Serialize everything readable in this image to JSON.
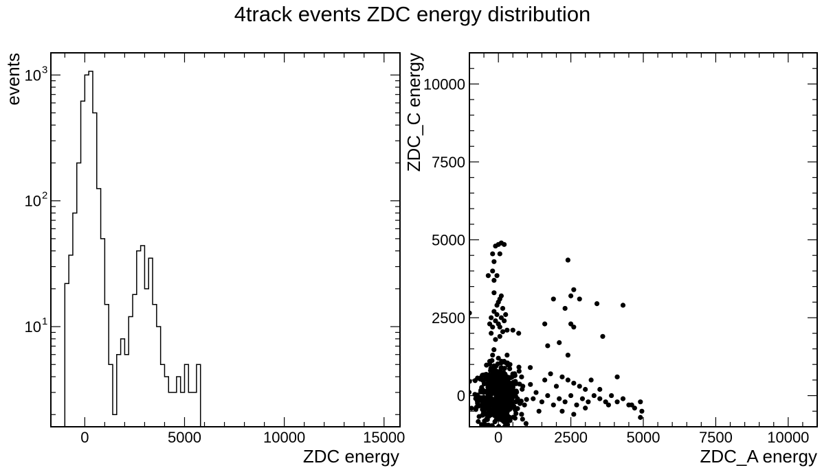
{
  "figure": {
    "title": "4track events ZDC energy distribution"
  },
  "chart_data": [
    {
      "type": "histogram",
      "xlabel": "ZDC energy",
      "ylabel": "events",
      "yscale": "log",
      "xlim": [
        -1700,
        15800
      ],
      "ylim": [
        1.6,
        1500
      ],
      "xticks": [
        0,
        5000,
        10000,
        15000
      ],
      "xtick_labels": [
        "0",
        "5000",
        "10000",
        "15000"
      ],
      "yticks": [
        10,
        100,
        1000
      ],
      "ytick_labels": [
        "10",
        "10",
        "10"
      ],
      "ytick_exponents": [
        "1",
        "2",
        "3"
      ],
      "bin_width": 200,
      "bin_edges_start": -1000,
      "counts": [
        22,
        37,
        80,
        200,
        620,
        1000,
        1070,
        500,
        125,
        50,
        15,
        5,
        2,
        6,
        8,
        6,
        12,
        18,
        40,
        44,
        20,
        35,
        15,
        10,
        5,
        4,
        3,
        3,
        4,
        3,
        5,
        3,
        3,
        5,
        0,
        0
      ],
      "color": "#000000"
    },
    {
      "type": "scatter",
      "xlabel": "ZDC_A energy",
      "ylabel": "ZDC_C energy",
      "xlim": [
        -1000,
        11000
      ],
      "ylim": [
        -1000,
        11000
      ],
      "xticks": [
        0,
        2500,
        5000,
        7500,
        10000
      ],
      "xtick_labels": [
        "0",
        "2500",
        "5000",
        "7500",
        "10000"
      ],
      "yticks": [
        0,
        2500,
        5000,
        7500,
        10000
      ],
      "ytick_labels": [
        "0",
        "2500",
        "5000",
        "7500",
        "10000"
      ],
      "marker_color": "#000000",
      "points": [
        [
          -1000,
          2650
        ],
        [
          -350,
          3850
        ],
        [
          -200,
          4000
        ],
        [
          -150,
          3700
        ],
        [
          -50,
          3850
        ],
        [
          -200,
          4550
        ],
        [
          -100,
          4800
        ],
        [
          0,
          4850
        ],
        [
          100,
          4900
        ],
        [
          200,
          4850
        ],
        [
          -150,
          4300
        ],
        [
          50,
          4550
        ],
        [
          -300,
          2300
        ],
        [
          -250,
          2500
        ],
        [
          -200,
          2200
        ],
        [
          -150,
          2700
        ],
        [
          -100,
          2400
        ],
        [
          -50,
          2600
        ],
        [
          0,
          2300
        ],
        [
          50,
          2200
        ],
        [
          100,
          2500
        ],
        [
          150,
          2800
        ],
        [
          200,
          2400
        ],
        [
          250,
          2600
        ],
        [
          -50,
          2900
        ],
        [
          50,
          3100
        ],
        [
          -150,
          3300
        ],
        [
          0,
          3000
        ],
        [
          100,
          3200
        ],
        [
          150,
          2050
        ],
        [
          -250,
          2000
        ],
        [
          -100,
          1800
        ],
        [
          50,
          1900
        ],
        [
          -300,
          1100
        ],
        [
          -200,
          1300
        ],
        [
          0,
          1200
        ],
        [
          200,
          1100
        ],
        [
          300,
          1300
        ],
        [
          400,
          1000
        ],
        [
          -100,
          800
        ],
        [
          100,
          900
        ],
        [
          300,
          2100
        ],
        [
          500,
          2100
        ],
        [
          700,
          2000
        ],
        [
          1600,
          2300
        ],
        [
          1900,
          3100
        ],
        [
          2300,
          2800
        ],
        [
          2500,
          3200
        ],
        [
          2600,
          3400
        ],
        [
          2500,
          2300
        ],
        [
          2600,
          2200
        ],
        [
          2400,
          4350
        ],
        [
          2800,
          3100
        ],
        [
          3400,
          2950
        ],
        [
          3600,
          1900
        ],
        [
          4300,
          2900
        ],
        [
          1700,
          1600
        ],
        [
          2100,
          1700
        ],
        [
          2400,
          1300
        ],
        [
          500,
          400
        ],
        [
          800,
          600
        ],
        [
          1100,
          900
        ],
        [
          1300,
          100
        ],
        [
          1600,
          500
        ],
        [
          1800,
          700
        ],
        [
          2000,
          300
        ],
        [
          2200,
          600
        ],
        [
          2400,
          500
        ],
        [
          2600,
          400
        ],
        [
          2800,
          300
        ],
        [
          3000,
          200
        ],
        [
          3200,
          500
        ],
        [
          3500,
          200
        ],
        [
          4100,
          600
        ],
        [
          600,
          -200
        ],
        [
          900,
          -300
        ],
        [
          1200,
          -100
        ],
        [
          1500,
          -200
        ],
        [
          1700,
          0
        ],
        [
          1900,
          -300
        ],
        [
          2100,
          -100
        ],
        [
          2300,
          -200
        ],
        [
          2500,
          0
        ],
        [
          2700,
          -300
        ],
        [
          2900,
          -100
        ],
        [
          3100,
          -200
        ],
        [
          3300,
          0
        ],
        [
          3500,
          -100
        ],
        [
          3700,
          -200
        ],
        [
          3900,
          0
        ],
        [
          4100,
          -200
        ],
        [
          4300,
          -100
        ],
        [
          4500,
          -300
        ],
        [
          4700,
          -400
        ],
        [
          4900,
          -200
        ],
        [
          4950,
          -500
        ],
        [
          4900,
          -700
        ],
        [
          4600,
          -300
        ],
        [
          3800,
          -300
        ],
        [
          3000,
          -400
        ],
        [
          2200,
          -500
        ],
        [
          1400,
          -500
        ],
        [
          800,
          -600
        ],
        [
          2600,
          -600
        ]
      ],
      "dense_cluster": {
        "center": [
          0,
          0
        ],
        "spread": [
          350,
          450
        ],
        "count": 600
      }
    }
  ]
}
